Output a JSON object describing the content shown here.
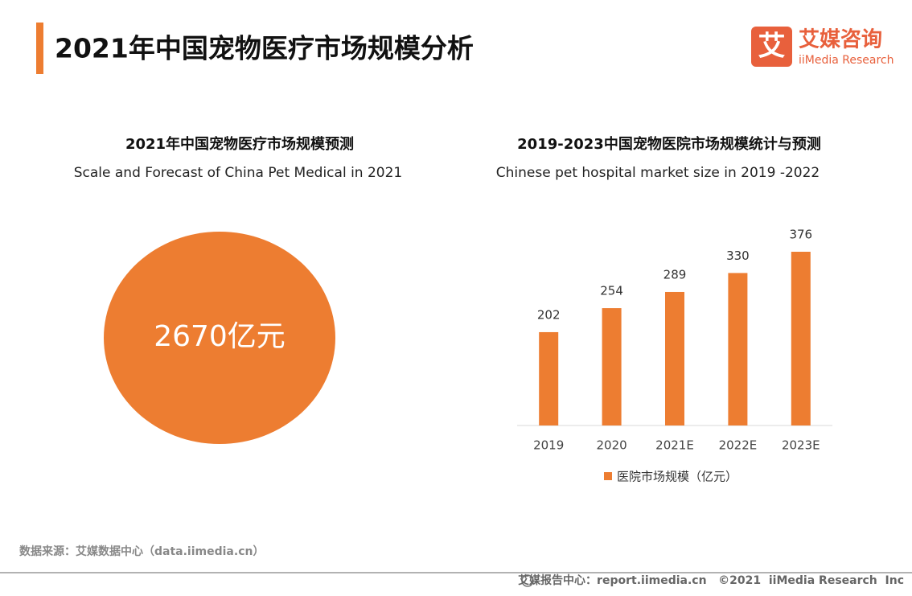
{
  "header": {
    "title": "2021年中国宠物医疗市场规模分析"
  },
  "logo": {
    "icon": "艾",
    "name": "艾媒咨询",
    "brand": "iiMedia Research"
  },
  "chart_data": [
    {
      "type": "pie",
      "title": "2021年中国宠物医疗市场规模预测",
      "subtitle": "Scale and Forecast of  China Pet Medical  in 2021",
      "values": [
        2670
      ],
      "value_labels": [
        "2670亿元"
      ],
      "color": "#ed7d31"
    },
    {
      "type": "bar",
      "title": "2019-2023中国宠物医院市场规模统计与预测",
      "subtitle": "Chinese pet hospital market size in 2019 -2022",
      "categories": [
        "2019",
        "2020",
        "2021E",
        "2022E",
        "2023E"
      ],
      "series": [
        {
          "name": "医院市场规模（亿元）",
          "color": "#ed7d31",
          "values": [
            202,
            254,
            289,
            330,
            376
          ]
        }
      ]
    }
  ],
  "source": "数据来源：艾媒数据中心（data.iimedia.cn）",
  "footer": "艾媒报告中心：report.iimedia.cn   ©2021  iiMedia Research  Inc"
}
